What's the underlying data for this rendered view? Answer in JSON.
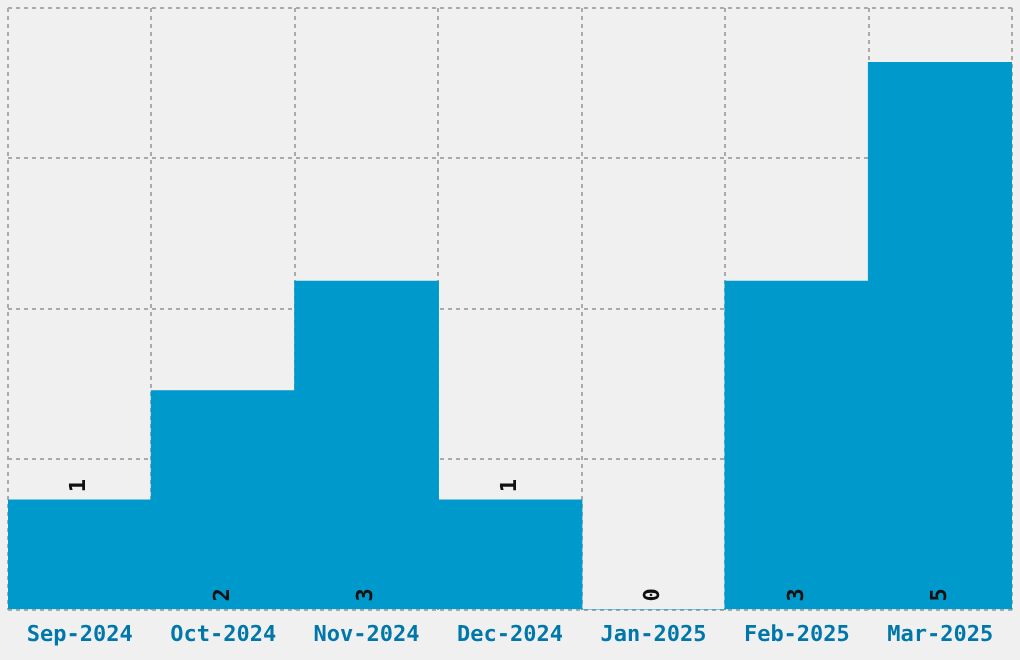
{
  "chart_data": {
    "type": "bar",
    "categories": [
      "Sep-2024",
      "Oct-2024",
      "Nov-2024",
      "Dec-2024",
      "Jan-2025",
      "Feb-2025",
      "Mar-2025"
    ],
    "values": [
      1,
      2,
      3,
      1,
      0,
      3,
      5
    ],
    "color": "#0099cc",
    "ylim": [
      0,
      5.5
    ],
    "yticks": [
      {
        "value": 0,
        "label": null
      },
      {
        "value": 1.375,
        "label": null
      },
      {
        "value": 2.75,
        "label": null
      },
      {
        "value": 4.125,
        "label": null
      },
      {
        "value": 5.5,
        "label": null
      }
    ],
    "tick_labels": "x",
    "grid": true,
    "data_labels": true
  }
}
